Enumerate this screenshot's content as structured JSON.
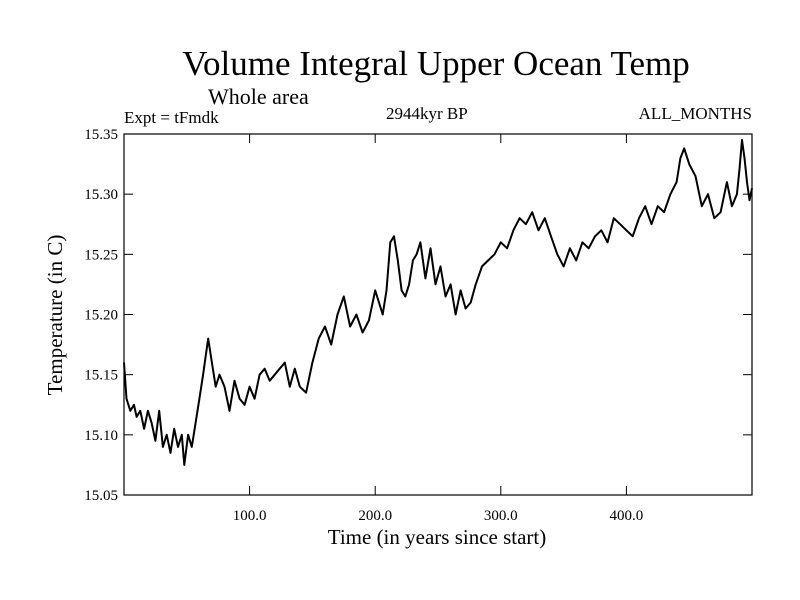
{
  "chart_data": {
    "type": "line",
    "title": "Volume Integral Upper Ocean Temp",
    "subtitle": "Whole area",
    "experiment_label": "Expt = tFmdk",
    "period_label": "2944kyr BP",
    "months_label": "ALL_MONTHS",
    "xlabel": "Time (in years since start)",
    "ylabel": "Temperature (in C)",
    "xlim": [
      0,
      500
    ],
    "ylim": [
      15.05,
      15.35
    ],
    "xticks": [
      100,
      200,
      300,
      400
    ],
    "xtick_labels": [
      "100.0",
      "200.0",
      "300.0",
      "400.0"
    ],
    "yticks": [
      15.05,
      15.1,
      15.15,
      15.2,
      15.25,
      15.3,
      15.35
    ],
    "ytick_labels": [
      "15.05",
      "15.10",
      "15.15",
      "15.20",
      "15.25",
      "15.30",
      "15.35"
    ],
    "grid": false,
    "series": [
      {
        "name": "Temperature",
        "x": [
          0,
          2,
          5,
          8,
          10,
          13,
          16,
          19,
          22,
          25,
          28,
          31,
          34,
          37,
          40,
          43,
          46,
          48,
          51,
          54,
          57,
          60,
          63,
          65,
          67,
          70,
          73,
          76,
          80,
          84,
          88,
          92,
          96,
          100,
          104,
          108,
          112,
          116,
          120,
          124,
          128,
          132,
          136,
          140,
          145,
          150,
          155,
          160,
          165,
          170,
          175,
          180,
          185,
          190,
          195,
          200,
          203,
          206,
          209,
          212,
          215,
          218,
          221,
          224,
          227,
          230,
          233,
          236,
          240,
          244,
          248,
          252,
          256,
          260,
          264,
          268,
          272,
          276,
          280,
          285,
          290,
          295,
          300,
          305,
          310,
          315,
          320,
          325,
          330,
          335,
          340,
          345,
          350,
          355,
          360,
          365,
          370,
          375,
          380,
          385,
          390,
          395,
          400,
          405,
          410,
          415,
          420,
          425,
          430,
          435,
          440,
          443,
          446,
          450,
          455,
          460,
          465,
          470,
          475,
          480,
          484,
          488,
          490,
          492,
          494,
          496,
          498,
          500
        ],
        "values": [
          15.16,
          15.13,
          15.12,
          15.125,
          15.115,
          15.12,
          15.105,
          15.12,
          15.11,
          15.095,
          15.12,
          15.09,
          15.1,
          15.085,
          15.105,
          15.09,
          15.1,
          15.075,
          15.1,
          15.09,
          15.11,
          15.13,
          15.15,
          15.165,
          15.18,
          15.16,
          15.14,
          15.15,
          15.14,
          15.12,
          15.145,
          15.13,
          15.125,
          15.14,
          15.13,
          15.15,
          15.155,
          15.145,
          15.15,
          15.155,
          15.16,
          15.14,
          15.155,
          15.14,
          15.135,
          15.16,
          15.18,
          15.19,
          15.175,
          15.2,
          15.215,
          15.19,
          15.2,
          15.185,
          15.195,
          15.22,
          15.21,
          15.2,
          15.22,
          15.26,
          15.265,
          15.245,
          15.22,
          15.215,
          15.225,
          15.245,
          15.25,
          15.26,
          15.23,
          15.255,
          15.225,
          15.24,
          15.215,
          15.225,
          15.2,
          15.22,
          15.205,
          15.21,
          15.225,
          15.24,
          15.245,
          15.25,
          15.26,
          15.255,
          15.27,
          15.28,
          15.275,
          15.285,
          15.27,
          15.28,
          15.265,
          15.25,
          15.24,
          15.255,
          15.245,
          15.26,
          15.255,
          15.265,
          15.27,
          15.26,
          15.28,
          15.275,
          15.27,
          15.265,
          15.28,
          15.29,
          15.275,
          15.29,
          15.285,
          15.3,
          15.31,
          15.33,
          15.338,
          15.325,
          15.315,
          15.29,
          15.3,
          15.28,
          15.285,
          15.31,
          15.29,
          15.3,
          15.32,
          15.345,
          15.33,
          15.31,
          15.295,
          15.305
        ]
      }
    ]
  }
}
